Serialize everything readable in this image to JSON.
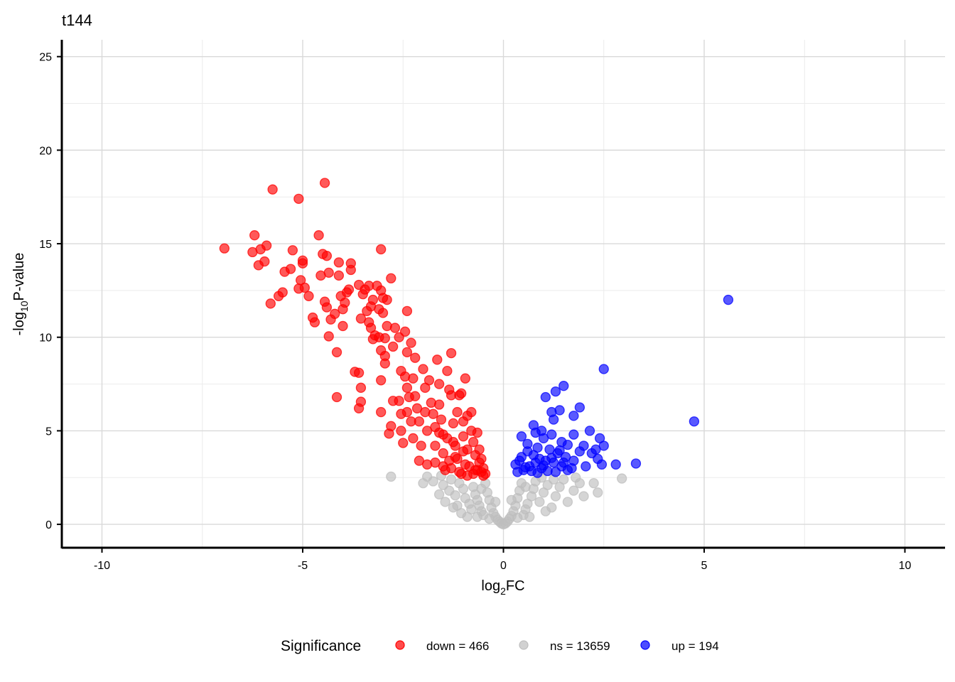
{
  "chart_data": {
    "type": "scatter",
    "title": "t144",
    "xlabel": {
      "base": "log",
      "sub": "2",
      "rest": "FC"
    },
    "ylabel": {
      "base": "-log",
      "sub": "10",
      "rest": "P-value"
    },
    "xlim": [
      -11,
      11
    ],
    "ylim": [
      -1.25,
      25.9
    ],
    "x_ticks": [
      -10,
      -5,
      0,
      5,
      10
    ],
    "x_tick_labels": [
      "-10",
      "-5",
      "0",
      "5",
      "10"
    ],
    "y_ticks": [
      0,
      5,
      10,
      15,
      20,
      25
    ],
    "y_tick_labels": [
      "0",
      "5",
      "10",
      "15",
      "20",
      "25"
    ],
    "grid": true,
    "legend": {
      "title": "Significance",
      "placement": "bottom",
      "entries": [
        {
          "key": "down",
          "label": "down = 466",
          "color": "#ff0000"
        },
        {
          "key": "ns",
          "label": "ns = 13659",
          "color": "#bebebe"
        },
        {
          "key": "up",
          "label": "up = 194",
          "color": "#0000ff"
        }
      ]
    },
    "series": [
      {
        "key": "down",
        "color": "#ff0000",
        "points": [
          [
            -6.95,
            14.75
          ],
          [
            -6.2,
            15.45
          ],
          [
            -6.25,
            14.55
          ],
          [
            -6.05,
            14.7
          ],
          [
            -6.1,
            13.85
          ],
          [
            -5.95,
            14.05
          ],
          [
            -5.9,
            14.9
          ],
          [
            -5.75,
            17.9
          ],
          [
            -5.8,
            11.8
          ],
          [
            -5.6,
            12.2
          ],
          [
            -5.5,
            12.4
          ],
          [
            -5.45,
            13.5
          ],
          [
            -5.3,
            13.65
          ],
          [
            -5.25,
            14.65
          ],
          [
            -5.1,
            17.4
          ],
          [
            -5.1,
            12.6
          ],
          [
            -5.05,
            13.05
          ],
          [
            -5.0,
            13.95
          ],
          [
            -5.0,
            14.1
          ],
          [
            -4.95,
            12.65
          ],
          [
            -4.85,
            12.2
          ],
          [
            -4.75,
            11.05
          ],
          [
            -4.7,
            10.8
          ],
          [
            -4.6,
            15.45
          ],
          [
            -4.55,
            13.3
          ],
          [
            -4.45,
            18.25
          ],
          [
            -4.5,
            14.45
          ],
          [
            -4.4,
            14.35
          ],
          [
            -4.45,
            11.9
          ],
          [
            -4.4,
            11.6
          ],
          [
            -4.35,
            10.05
          ],
          [
            -4.35,
            13.45
          ],
          [
            -4.3,
            10.95
          ],
          [
            -4.2,
            11.25
          ],
          [
            -4.15,
            9.2
          ],
          [
            -4.15,
            6.8
          ],
          [
            -4.1,
            13.3
          ],
          [
            -4.0,
            11.5
          ],
          [
            -4.1,
            14.0
          ],
          [
            -4.05,
            12.2
          ],
          [
            -4.0,
            10.6
          ],
          [
            -3.95,
            11.85
          ],
          [
            -3.9,
            12.4
          ],
          [
            -3.85,
            12.55
          ],
          [
            -3.8,
            13.6
          ],
          [
            -3.8,
            13.95
          ],
          [
            -3.7,
            8.15
          ],
          [
            -3.6,
            12.8
          ],
          [
            -3.55,
            11.0
          ],
          [
            -3.5,
            12.3
          ],
          [
            -3.45,
            12.55
          ],
          [
            -3.35,
            12.75
          ],
          [
            -3.6,
            8.1
          ],
          [
            -3.55,
            7.3
          ],
          [
            -3.55,
            6.55
          ],
          [
            -3.6,
            6.2
          ],
          [
            -3.4,
            11.4
          ],
          [
            -3.35,
            10.8
          ],
          [
            -3.3,
            10.5
          ],
          [
            -3.3,
            11.65
          ],
          [
            -3.25,
            12.0
          ],
          [
            -3.2,
            10.1
          ],
          [
            -3.25,
            9.9
          ],
          [
            -3.15,
            12.75
          ],
          [
            -3.1,
            11.5
          ],
          [
            -3.1,
            10.0
          ],
          [
            -3.05,
            14.7
          ],
          [
            -3.05,
            12.5
          ],
          [
            -3.0,
            11.3
          ],
          [
            -3.0,
            12.1
          ],
          [
            -2.95,
            9.95
          ],
          [
            -2.95,
            8.6
          ],
          [
            -3.05,
            9.3
          ],
          [
            -3.05,
            7.7
          ],
          [
            -3.05,
            6.0
          ],
          [
            -2.9,
            12.0
          ],
          [
            -2.9,
            10.6
          ],
          [
            -2.95,
            9.0
          ],
          [
            -2.85,
            4.85
          ],
          [
            -2.8,
            13.15
          ],
          [
            -2.75,
            9.5
          ],
          [
            -2.75,
            6.6
          ],
          [
            -2.8,
            5.25
          ],
          [
            -2.7,
            10.5
          ],
          [
            -2.6,
            10.0
          ],
          [
            -2.55,
            8.2
          ],
          [
            -2.6,
            6.6
          ],
          [
            -2.55,
            5.9
          ],
          [
            -2.55,
            5.0
          ],
          [
            -2.5,
            4.35
          ],
          [
            -2.45,
            10.3
          ],
          [
            -2.4,
            9.2
          ],
          [
            -2.45,
            7.9
          ],
          [
            -2.4,
            7.3
          ],
          [
            -2.35,
            6.8
          ],
          [
            -2.4,
            6.0
          ],
          [
            -2.3,
            5.5
          ],
          [
            -2.25,
            4.6
          ],
          [
            -2.4,
            11.4
          ],
          [
            -2.3,
            9.7
          ],
          [
            -2.2,
            8.9
          ],
          [
            -2.25,
            7.8
          ],
          [
            -2.2,
            6.85
          ],
          [
            -2.15,
            6.2
          ],
          [
            -2.1,
            5.5
          ],
          [
            -2.05,
            4.2
          ],
          [
            -2.1,
            3.4
          ],
          [
            -2.0,
            8.3
          ],
          [
            -1.95,
            7.3
          ],
          [
            -1.95,
            6.0
          ],
          [
            -1.9,
            5.0
          ],
          [
            -1.9,
            3.2
          ],
          [
            -1.85,
            7.7
          ],
          [
            -1.8,
            6.5
          ],
          [
            -1.75,
            5.9
          ],
          [
            -1.7,
            5.2
          ],
          [
            -1.7,
            4.2
          ],
          [
            -1.65,
            8.8
          ],
          [
            -1.6,
            7.5
          ],
          [
            -1.6,
            6.4
          ],
          [
            -1.55,
            5.6
          ],
          [
            -1.5,
            4.8
          ],
          [
            -1.5,
            3.8
          ],
          [
            -1.45,
            2.9
          ],
          [
            -1.4,
            8.2
          ],
          [
            -1.35,
            7.2
          ],
          [
            -1.3,
            9.15
          ],
          [
            -1.3,
            6.9
          ],
          [
            -1.25,
            5.4
          ],
          [
            -1.25,
            4.4
          ],
          [
            -1.2,
            3.6
          ],
          [
            -1.15,
            6.0
          ],
          [
            -1.1,
            6.9
          ],
          [
            -1.05,
            7.0
          ],
          [
            -1.0,
            5.5
          ],
          [
            -1.0,
            4.7
          ],
          [
            -1.0,
            3.9
          ],
          [
            -0.95,
            7.8
          ],
          [
            -0.9,
            5.8
          ],
          [
            -0.9,
            4.0
          ],
          [
            -0.85,
            3.1
          ],
          [
            -0.8,
            6.0
          ],
          [
            -0.8,
            5.0
          ],
          [
            -0.75,
            4.4
          ],
          [
            -0.7,
            3.7
          ],
          [
            -0.7,
            2.9
          ],
          [
            -0.65,
            4.9
          ],
          [
            -0.6,
            4.0
          ],
          [
            -0.55,
            3.5
          ],
          [
            -0.5,
            3.0
          ],
          [
            -0.45,
            2.7
          ],
          [
            -0.5,
            2.6
          ],
          [
            -0.9,
            2.6
          ],
          [
            -1.1,
            2.8
          ],
          [
            -1.3,
            3.0
          ],
          [
            -1.5,
            3.1
          ],
          [
            -1.7,
            3.3
          ],
          [
            -1.2,
            4.2
          ],
          [
            -1.4,
            4.6
          ],
          [
            -1.6,
            4.9
          ],
          [
            -0.6,
            3.3
          ],
          [
            -0.75,
            2.7
          ],
          [
            -0.65,
            2.9
          ],
          [
            -0.55,
            2.8
          ],
          [
            -0.95,
            3.2
          ],
          [
            -1.15,
            3.5
          ],
          [
            -1.35,
            3.4
          ],
          [
            -1.05,
            2.7
          ]
        ]
      },
      {
        "key": "ns",
        "color": "#bebebe",
        "points": [
          [
            -2.8,
            2.55
          ],
          [
            -1.9,
            2.55
          ],
          [
            -1.75,
            2.3
          ],
          [
            -1.5,
            2.1
          ],
          [
            -1.35,
            1.8
          ],
          [
            -1.2,
            1.55
          ],
          [
            -1.3,
            2.4
          ],
          [
            -1.1,
            2.2
          ],
          [
            -1.0,
            1.9
          ],
          [
            -0.95,
            1.4
          ],
          [
            -0.85,
            1.1
          ],
          [
            -0.8,
            0.8
          ],
          [
            -0.75,
            2.0
          ],
          [
            -0.7,
            1.6
          ],
          [
            -0.65,
            1.3
          ],
          [
            -0.6,
            1.0
          ],
          [
            -0.55,
            0.7
          ],
          [
            -0.5,
            0.5
          ],
          [
            -0.45,
            2.2
          ],
          [
            -0.4,
            1.7
          ],
          [
            -0.35,
            1.3
          ],
          [
            -0.3,
            0.9
          ],
          [
            -0.25,
            0.6
          ],
          [
            -0.2,
            0.4
          ],
          [
            -0.15,
            0.25
          ],
          [
            -0.1,
            0.15
          ],
          [
            -0.05,
            0.05
          ],
          [
            0.0,
            0.0
          ],
          [
            0.05,
            0.05
          ],
          [
            0.1,
            0.15
          ],
          [
            0.15,
            0.3
          ],
          [
            0.2,
            0.45
          ],
          [
            0.25,
            0.7
          ],
          [
            0.3,
            1.0
          ],
          [
            0.35,
            1.4
          ],
          [
            0.4,
            1.8
          ],
          [
            0.45,
            2.2
          ],
          [
            0.5,
            0.5
          ],
          [
            0.55,
            0.8
          ],
          [
            0.6,
            1.1
          ],
          [
            0.7,
            1.5
          ],
          [
            0.75,
            1.9
          ],
          [
            0.8,
            2.3
          ],
          [
            0.9,
            1.2
          ],
          [
            1.0,
            1.7
          ],
          [
            1.1,
            2.1
          ],
          [
            1.2,
            0.9
          ],
          [
            1.3,
            1.5
          ],
          [
            1.4,
            2.0
          ],
          [
            1.5,
            2.4
          ],
          [
            1.6,
            1.2
          ],
          [
            1.75,
            1.8
          ],
          [
            1.9,
            2.2
          ],
          [
            2.0,
            1.5
          ],
          [
            2.35,
            1.7
          ],
          [
            2.25,
            2.2
          ],
          [
            2.95,
            2.45
          ],
          [
            -1.6,
            1.6
          ],
          [
            -1.45,
            1.2
          ],
          [
            -1.25,
            0.9
          ],
          [
            -1.05,
            0.6
          ],
          [
            -0.9,
            0.4
          ],
          [
            -0.2,
            1.2
          ],
          [
            0.2,
            1.3
          ],
          [
            -0.35,
            0.3
          ],
          [
            0.35,
            0.35
          ],
          [
            0.65,
            0.4
          ],
          [
            -0.65,
            0.4
          ],
          [
            1.05,
            0.7
          ],
          [
            -1.15,
            1.0
          ],
          [
            -2.0,
            2.2
          ],
          [
            1.8,
            2.5
          ],
          [
            -0.55,
            1.9
          ],
          [
            0.55,
            2.0
          ],
          [
            1.25,
            2.4
          ],
          [
            -1.55,
            2.6
          ],
          [
            0.95,
            2.5
          ]
        ]
      },
      {
        "key": "up",
        "color": "#0000ff",
        "points": [
          [
            5.6,
            12.0
          ],
          [
            4.75,
            5.5
          ],
          [
            2.5,
            8.3
          ],
          [
            1.5,
            7.4
          ],
          [
            1.3,
            7.1
          ],
          [
            1.05,
            6.8
          ],
          [
            1.9,
            6.25
          ],
          [
            1.2,
            6.0
          ],
          [
            1.4,
            6.1
          ],
          [
            1.75,
            5.8
          ],
          [
            1.25,
            5.6
          ],
          [
            0.75,
            5.3
          ],
          [
            0.95,
            5.0
          ],
          [
            2.15,
            5.0
          ],
          [
            0.45,
            4.7
          ],
          [
            0.8,
            4.9
          ],
          [
            1.0,
            4.6
          ],
          [
            1.2,
            4.8
          ],
          [
            1.45,
            4.4
          ],
          [
            1.75,
            4.8
          ],
          [
            2.4,
            4.6
          ],
          [
            2.0,
            4.2
          ],
          [
            2.5,
            4.2
          ],
          [
            2.3,
            4.0
          ],
          [
            2.2,
            3.8
          ],
          [
            1.9,
            3.9
          ],
          [
            0.6,
            4.3
          ],
          [
            0.85,
            4.1
          ],
          [
            1.15,
            4.0
          ],
          [
            1.35,
            3.8
          ],
          [
            1.55,
            3.6
          ],
          [
            1.75,
            3.4
          ],
          [
            2.35,
            3.5
          ],
          [
            2.45,
            3.2
          ],
          [
            2.8,
            3.2
          ],
          [
            3.3,
            3.25
          ],
          [
            2.05,
            3.1
          ],
          [
            0.3,
            3.2
          ],
          [
            0.45,
            3.6
          ],
          [
            0.6,
            3.9
          ],
          [
            0.75,
            3.7
          ],
          [
            0.9,
            3.5
          ],
          [
            1.05,
            3.4
          ],
          [
            1.25,
            3.3
          ],
          [
            1.45,
            3.1
          ],
          [
            1.6,
            2.9
          ],
          [
            0.35,
            2.8
          ],
          [
            0.5,
            2.9
          ],
          [
            0.65,
            3.1
          ],
          [
            0.8,
            3.3
          ],
          [
            0.95,
            3.0
          ],
          [
            1.1,
            2.85
          ],
          [
            1.3,
            2.8
          ],
          [
            1.5,
            3.3
          ],
          [
            1.7,
            3.0
          ],
          [
            0.4,
            3.4
          ],
          [
            0.55,
            3.05
          ],
          [
            0.7,
            2.85
          ],
          [
            0.85,
            2.75
          ],
          [
            1.0,
            3.15
          ],
          [
            1.2,
            3.55
          ],
          [
            1.4,
            3.95
          ],
          [
            1.6,
            4.25
          ]
        ]
      }
    ]
  }
}
